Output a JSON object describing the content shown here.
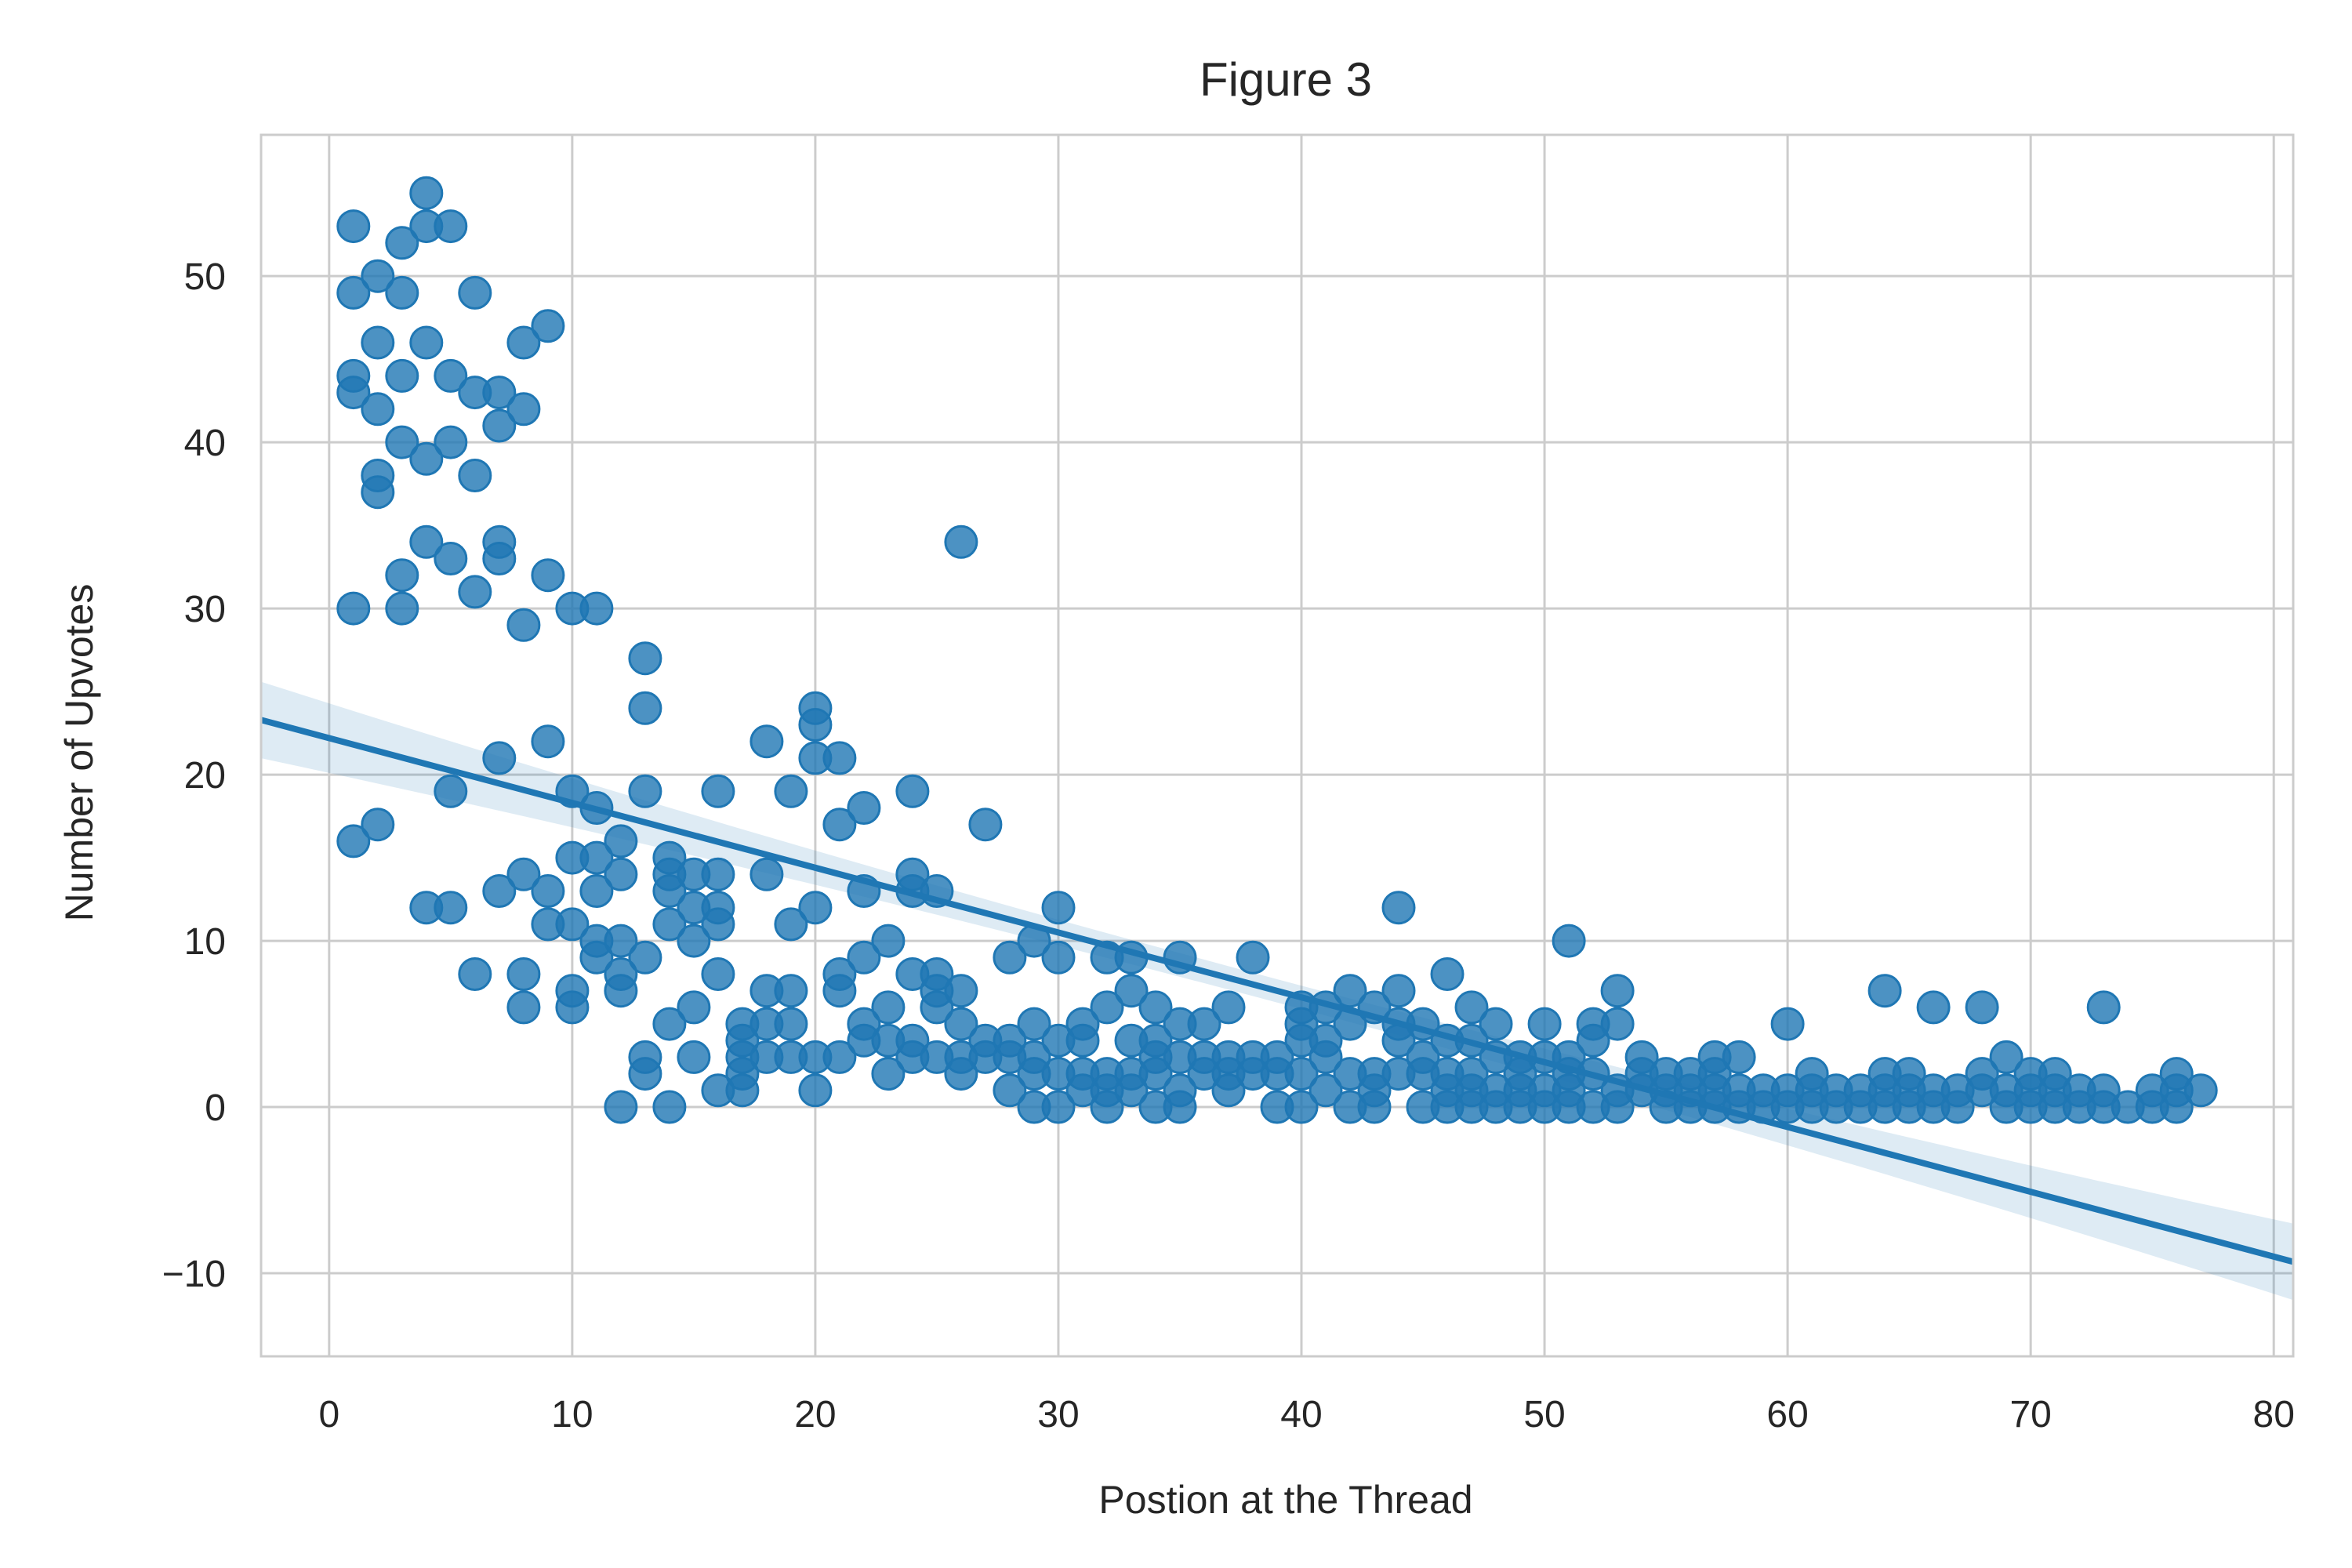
{
  "chart_data": {
    "type": "scatter",
    "title": "Figure 3",
    "xlabel": "Postion at the Thread",
    "ylabel": "Number of Upvotes",
    "xlim": [
      -2.8,
      80.8
    ],
    "ylim": [
      -15,
      58.5
    ],
    "xticks": [
      0,
      10,
      20,
      30,
      40,
      50,
      60,
      70,
      80
    ],
    "yticks": [
      -10,
      0,
      10,
      20,
      30,
      40,
      50
    ],
    "xtick_labels": [
      "0",
      "10",
      "20",
      "30",
      "40",
      "50",
      "60",
      "70",
      "80"
    ],
    "ytick_labels": [
      "−10",
      "0",
      "10",
      "20",
      "30",
      "40",
      "50"
    ],
    "grid": true,
    "color": "#1f77b4",
    "regression": {
      "x_range": [
        -2.8,
        80.8
      ],
      "intercept": 22.2,
      "slope": -0.39,
      "ci_halfwidth_at_ends": 2.3,
      "ci_halfwidth_at_center": 0.7
    },
    "points": [
      [
        1,
        53
      ],
      [
        1,
        49
      ],
      [
        1,
        44
      ],
      [
        1,
        43
      ],
      [
        1,
        30
      ],
      [
        1,
        16
      ],
      [
        2,
        50
      ],
      [
        2,
        46
      ],
      [
        2,
        42
      ],
      [
        2,
        38
      ],
      [
        2,
        37
      ],
      [
        2,
        17
      ],
      [
        3,
        52
      ],
      [
        3,
        49
      ],
      [
        3,
        44
      ],
      [
        3,
        40
      ],
      [
        3,
        32
      ],
      [
        3,
        30
      ],
      [
        4,
        55
      ],
      [
        4,
        53
      ],
      [
        4,
        46
      ],
      [
        4,
        39
      ],
      [
        4,
        34
      ],
      [
        4,
        12
      ],
      [
        5,
        53
      ],
      [
        5,
        44
      ],
      [
        5,
        40
      ],
      [
        5,
        33
      ],
      [
        5,
        19
      ],
      [
        5,
        12
      ],
      [
        6,
        49
      ],
      [
        6,
        43
      ],
      [
        6,
        38
      ],
      [
        6,
        31
      ],
      [
        6,
        8
      ],
      [
        7,
        43
      ],
      [
        7,
        41
      ],
      [
        7,
        34
      ],
      [
        7,
        33
      ],
      [
        7,
        21
      ],
      [
        7,
        13
      ],
      [
        8,
        46
      ],
      [
        8,
        42
      ],
      [
        8,
        29
      ],
      [
        8,
        14
      ],
      [
        8,
        8
      ],
      [
        8,
        6
      ],
      [
        9,
        47
      ],
      [
        9,
        32
      ],
      [
        9,
        22
      ],
      [
        9,
        13
      ],
      [
        9,
        11
      ],
      [
        10,
        30
      ],
      [
        10,
        19
      ],
      [
        10,
        15
      ],
      [
        10,
        11
      ],
      [
        10,
        7
      ],
      [
        10,
        6
      ],
      [
        11,
        30
      ],
      [
        11,
        18
      ],
      [
        11,
        15
      ],
      [
        11,
        13
      ],
      [
        11,
        10
      ],
      [
        11,
        9
      ],
      [
        12,
        16
      ],
      [
        12,
        14
      ],
      [
        12,
        10
      ],
      [
        12,
        8
      ],
      [
        12,
        7
      ],
      [
        12,
        0
      ],
      [
        13,
        27
      ],
      [
        13,
        24
      ],
      [
        13,
        19
      ],
      [
        13,
        9
      ],
      [
        13,
        3
      ],
      [
        13,
        2
      ],
      [
        14,
        15
      ],
      [
        14,
        14
      ],
      [
        14,
        13
      ],
      [
        14,
        11
      ],
      [
        14,
        5
      ],
      [
        14,
        0
      ],
      [
        15,
        14
      ],
      [
        15,
        12
      ],
      [
        15,
        10
      ],
      [
        15,
        6
      ],
      [
        15,
        3
      ],
      [
        16,
        19
      ],
      [
        16,
        14
      ],
      [
        16,
        12
      ],
      [
        16,
        11
      ],
      [
        16,
        8
      ],
      [
        16,
        1
      ],
      [
        17,
        5
      ],
      [
        17,
        4
      ],
      [
        17,
        3
      ],
      [
        17,
        2
      ],
      [
        17,
        1
      ],
      [
        18,
        22
      ],
      [
        18,
        14
      ],
      [
        18,
        7
      ],
      [
        18,
        5
      ],
      [
        18,
        3
      ],
      [
        19,
        19
      ],
      [
        19,
        11
      ],
      [
        19,
        7
      ],
      [
        19,
        5
      ],
      [
        19,
        3
      ],
      [
        20,
        24
      ],
      [
        20,
        23
      ],
      [
        20,
        21
      ],
      [
        20,
        12
      ],
      [
        20,
        3
      ],
      [
        20,
        1
      ],
      [
        21,
        21
      ],
      [
        21,
        17
      ],
      [
        21,
        8
      ],
      [
        21,
        7
      ],
      [
        21,
        3
      ],
      [
        22,
        18
      ],
      [
        22,
        13
      ],
      [
        22,
        9
      ],
      [
        22,
        5
      ],
      [
        22,
        4
      ],
      [
        23,
        10
      ],
      [
        23,
        6
      ],
      [
        23,
        4
      ],
      [
        23,
        2
      ],
      [
        24,
        19
      ],
      [
        24,
        14
      ],
      [
        24,
        13
      ],
      [
        24,
        8
      ],
      [
        24,
        4
      ],
      [
        24,
        3
      ],
      [
        25,
        13
      ],
      [
        25,
        8
      ],
      [
        25,
        7
      ],
      [
        25,
        6
      ],
      [
        25,
        3
      ],
      [
        26,
        34
      ],
      [
        26,
        7
      ],
      [
        26,
        5
      ],
      [
        26,
        3
      ],
      [
        26,
        2
      ],
      [
        27,
        17
      ],
      [
        27,
        4
      ],
      [
        27,
        3
      ],
      [
        28,
        9
      ],
      [
        28,
        4
      ],
      [
        28,
        3
      ],
      [
        28,
        1
      ],
      [
        29,
        10
      ],
      [
        29,
        5
      ],
      [
        29,
        3
      ],
      [
        29,
        2
      ],
      [
        29,
        0
      ],
      [
        30,
        12
      ],
      [
        30,
        9
      ],
      [
        30,
        4
      ],
      [
        30,
        2
      ],
      [
        30,
        0
      ],
      [
        31,
        5
      ],
      [
        31,
        4
      ],
      [
        31,
        2
      ],
      [
        31,
        1
      ],
      [
        32,
        9
      ],
      [
        32,
        6
      ],
      [
        32,
        2
      ],
      [
        32,
        1
      ],
      [
        32,
        0
      ],
      [
        33,
        9
      ],
      [
        33,
        7
      ],
      [
        33,
        4
      ],
      [
        33,
        2
      ],
      [
        33,
        1
      ],
      [
        34,
        6
      ],
      [
        34,
        4
      ],
      [
        34,
        3
      ],
      [
        34,
        2
      ],
      [
        34,
        0
      ],
      [
        35,
        9
      ],
      [
        35,
        5
      ],
      [
        35,
        3
      ],
      [
        35,
        1
      ],
      [
        35,
        0
      ],
      [
        36,
        5
      ],
      [
        36,
        3
      ],
      [
        36,
        2
      ],
      [
        37,
        6
      ],
      [
        37,
        3
      ],
      [
        37,
        2
      ],
      [
        37,
        1
      ],
      [
        38,
        9
      ],
      [
        38,
        3
      ],
      [
        38,
        2
      ],
      [
        39,
        3
      ],
      [
        39,
        2
      ],
      [
        39,
        0
      ],
      [
        40,
        6
      ],
      [
        40,
        5
      ],
      [
        40,
        4
      ],
      [
        40,
        2
      ],
      [
        40,
        0
      ],
      [
        41,
        6
      ],
      [
        41,
        4
      ],
      [
        41,
        3
      ],
      [
        41,
        1
      ],
      [
        42,
        7
      ],
      [
        42,
        5
      ],
      [
        42,
        2
      ],
      [
        42,
        0
      ],
      [
        43,
        6
      ],
      [
        43,
        2
      ],
      [
        43,
        1
      ],
      [
        43,
        0
      ],
      [
        44,
        12
      ],
      [
        44,
        7
      ],
      [
        44,
        5
      ],
      [
        44,
        4
      ],
      [
        44,
        2
      ],
      [
        45,
        5
      ],
      [
        45,
        3
      ],
      [
        45,
        2
      ],
      [
        45,
        0
      ],
      [
        46,
        8
      ],
      [
        46,
        4
      ],
      [
        46,
        2
      ],
      [
        46,
        1
      ],
      [
        46,
        0
      ],
      [
        47,
        6
      ],
      [
        47,
        4
      ],
      [
        47,
        2
      ],
      [
        47,
        1
      ],
      [
        47,
        0
      ],
      [
        48,
        5
      ],
      [
        48,
        3
      ],
      [
        48,
        1
      ],
      [
        48,
        0
      ],
      [
        49,
        3
      ],
      [
        49,
        2
      ],
      [
        49,
        1
      ],
      [
        49,
        0
      ],
      [
        50,
        5
      ],
      [
        50,
        3
      ],
      [
        50,
        1
      ],
      [
        50,
        0
      ],
      [
        51,
        10
      ],
      [
        51,
        3
      ],
      [
        51,
        2
      ],
      [
        51,
        1
      ],
      [
        51,
        0
      ],
      [
        52,
        5
      ],
      [
        52,
        4
      ],
      [
        52,
        2
      ],
      [
        52,
        0
      ],
      [
        53,
        7
      ],
      [
        53,
        5
      ],
      [
        53,
        1
      ],
      [
        53,
        0
      ],
      [
        54,
        3
      ],
      [
        54,
        2
      ],
      [
        54,
        1
      ],
      [
        55,
        2
      ],
      [
        55,
        1
      ],
      [
        55,
        0
      ],
      [
        56,
        2
      ],
      [
        56,
        1
      ],
      [
        56,
        0
      ],
      [
        57,
        3
      ],
      [
        57,
        2
      ],
      [
        57,
        1
      ],
      [
        57,
        0
      ],
      [
        58,
        3
      ],
      [
        58,
        1
      ],
      [
        58,
        0
      ],
      [
        59,
        1
      ],
      [
        59,
        0
      ],
      [
        60,
        5
      ],
      [
        60,
        1
      ],
      [
        60,
        0
      ],
      [
        61,
        2
      ],
      [
        61,
        1
      ],
      [
        61,
        0
      ],
      [
        62,
        1
      ],
      [
        62,
        0
      ],
      [
        63,
        1
      ],
      [
        63,
        0
      ],
      [
        64,
        7
      ],
      [
        64,
        2
      ],
      [
        64,
        1
      ],
      [
        64,
        0
      ],
      [
        65,
        2
      ],
      [
        65,
        1
      ],
      [
        65,
        0
      ],
      [
        66,
        6
      ],
      [
        66,
        1
      ],
      [
        66,
        0
      ],
      [
        67,
        1
      ],
      [
        67,
        0
      ],
      [
        68,
        6
      ],
      [
        68,
        2
      ],
      [
        68,
        1
      ],
      [
        69,
        3
      ],
      [
        69,
        1
      ],
      [
        69,
        0
      ],
      [
        70,
        2
      ],
      [
        70,
        1
      ],
      [
        70,
        0
      ],
      [
        71,
        2
      ],
      [
        71,
        1
      ],
      [
        71,
        0
      ],
      [
        72,
        1
      ],
      [
        72,
        0
      ],
      [
        73,
        6
      ],
      [
        73,
        1
      ],
      [
        73,
        0
      ],
      [
        74,
        0
      ],
      [
        75,
        1
      ],
      [
        75,
        0
      ],
      [
        76,
        2
      ],
      [
        76,
        1
      ],
      [
        76,
        0
      ],
      [
        77,
        1
      ]
    ]
  }
}
